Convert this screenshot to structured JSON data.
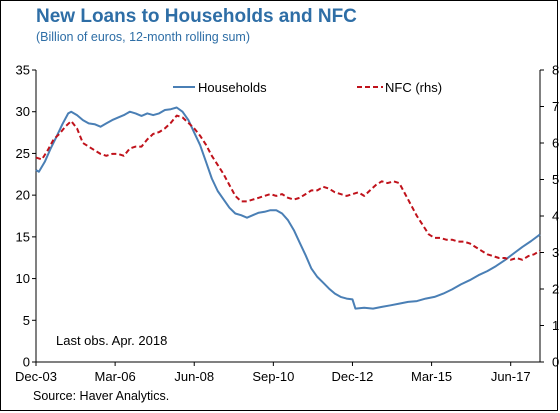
{
  "chart_data": {
    "type": "line",
    "title": "New Loans to Households and NFC",
    "subtitle": "(Billion of euros, 12-month rolling sum)",
    "source": "Source: Haver Analytics.",
    "annotation": "Last obs. Apr. 2018",
    "x_ticks": [
      "Dec-03",
      "Mar-06",
      "Jun-08",
      "Sep-10",
      "Dec-12",
      "Mar-15",
      "Jun-17"
    ],
    "x_range": [
      "2003-12",
      "2018-04"
    ],
    "y_left": {
      "min": 0,
      "max": 35,
      "ticks": [
        "0",
        "5",
        "10",
        "15",
        "20",
        "25",
        "30",
        "35"
      ]
    },
    "y_right": {
      "min": 0,
      "max": 8,
      "ticks": [
        "0",
        "1",
        "2",
        "3",
        "4",
        "5",
        "6",
        "7",
        "8"
      ]
    },
    "legend_placement": "top",
    "series": [
      {
        "name": "Households",
        "axis": "left",
        "color": "#4a7fb5",
        "style": "solid",
        "points": [
          [
            "2003-12",
            23.0
          ],
          [
            "2004-01",
            22.8
          ],
          [
            "2004-03",
            24.0
          ],
          [
            "2004-05",
            25.6
          ],
          [
            "2004-07",
            27.0
          ],
          [
            "2004-09",
            28.5
          ],
          [
            "2004-11",
            29.8
          ],
          [
            "2004-12",
            30.0
          ],
          [
            "2005-02",
            29.6
          ],
          [
            "2005-04",
            29.0
          ],
          [
            "2005-06",
            28.6
          ],
          [
            "2005-08",
            28.5
          ],
          [
            "2005-10",
            28.2
          ],
          [
            "2005-12",
            28.6
          ],
          [
            "2006-02",
            29.0
          ],
          [
            "2006-04",
            29.3
          ],
          [
            "2006-06",
            29.6
          ],
          [
            "2006-08",
            30.0
          ],
          [
            "2006-10",
            29.8
          ],
          [
            "2006-12",
            29.5
          ],
          [
            "2007-02",
            29.8
          ],
          [
            "2007-04",
            29.6
          ],
          [
            "2007-06",
            29.8
          ],
          [
            "2007-08",
            30.2
          ],
          [
            "2007-10",
            30.3
          ],
          [
            "2007-12",
            30.5
          ],
          [
            "2008-02",
            30.0
          ],
          [
            "2008-04",
            29.0
          ],
          [
            "2008-06",
            27.5
          ],
          [
            "2008-08",
            26.0
          ],
          [
            "2008-10",
            24.0
          ],
          [
            "2008-12",
            22.0
          ],
          [
            "2009-02",
            20.5
          ],
          [
            "2009-04",
            19.5
          ],
          [
            "2009-06",
            18.5
          ],
          [
            "2009-08",
            17.8
          ],
          [
            "2009-10",
            17.6
          ],
          [
            "2009-12",
            17.3
          ],
          [
            "2010-02",
            17.6
          ],
          [
            "2010-04",
            17.9
          ],
          [
            "2010-06",
            18.0
          ],
          [
            "2010-08",
            18.2
          ],
          [
            "2010-10",
            18.2
          ],
          [
            "2010-12",
            17.8
          ],
          [
            "2011-02",
            17.0
          ],
          [
            "2011-04",
            15.8
          ],
          [
            "2011-06",
            14.3
          ],
          [
            "2011-08",
            12.8
          ],
          [
            "2011-10",
            11.2
          ],
          [
            "2011-12",
            10.2
          ],
          [
            "2012-02",
            9.5
          ],
          [
            "2012-04",
            8.8
          ],
          [
            "2012-06",
            8.2
          ],
          [
            "2012-08",
            7.8
          ],
          [
            "2012-10",
            7.6
          ],
          [
            "2012-12",
            7.5
          ],
          [
            "2013-01",
            6.4
          ],
          [
            "2013-04",
            6.5
          ],
          [
            "2013-07",
            6.4
          ],
          [
            "2013-10",
            6.6
          ],
          [
            "2014-01",
            6.8
          ],
          [
            "2014-04",
            7.0
          ],
          [
            "2014-07",
            7.2
          ],
          [
            "2014-10",
            7.3
          ],
          [
            "2015-01",
            7.6
          ],
          [
            "2015-04",
            7.8
          ],
          [
            "2015-07",
            8.2
          ],
          [
            "2015-10",
            8.7
          ],
          [
            "2016-01",
            9.3
          ],
          [
            "2016-04",
            9.8
          ],
          [
            "2016-07",
            10.4
          ],
          [
            "2016-10",
            10.9
          ],
          [
            "2017-01",
            11.5
          ],
          [
            "2017-04",
            12.2
          ],
          [
            "2017-07",
            13.0
          ],
          [
            "2017-10",
            13.8
          ],
          [
            "2018-01",
            14.5
          ],
          [
            "2018-04",
            15.3
          ]
        ]
      },
      {
        "name": "NFC (rhs)",
        "axis": "right",
        "color": "#c0121b",
        "style": "dashed",
        "points": [
          [
            "2003-12",
            5.6
          ],
          [
            "2004-02",
            5.55
          ],
          [
            "2004-04",
            5.8
          ],
          [
            "2004-06",
            6.1
          ],
          [
            "2004-08",
            6.25
          ],
          [
            "2004-10",
            6.45
          ],
          [
            "2004-12",
            6.6
          ],
          [
            "2005-02",
            6.4
          ],
          [
            "2005-04",
            6.0
          ],
          [
            "2005-06",
            5.9
          ],
          [
            "2005-08",
            5.8
          ],
          [
            "2005-10",
            5.7
          ],
          [
            "2005-12",
            5.65
          ],
          [
            "2006-02",
            5.7
          ],
          [
            "2006-04",
            5.7
          ],
          [
            "2006-06",
            5.65
          ],
          [
            "2006-08",
            5.85
          ],
          [
            "2006-10",
            5.9
          ],
          [
            "2006-12",
            5.9
          ],
          [
            "2007-02",
            6.1
          ],
          [
            "2007-04",
            6.25
          ],
          [
            "2007-06",
            6.3
          ],
          [
            "2007-08",
            6.4
          ],
          [
            "2007-10",
            6.55
          ],
          [
            "2007-12",
            6.75
          ],
          [
            "2008-02",
            6.7
          ],
          [
            "2008-04",
            6.55
          ],
          [
            "2008-06",
            6.4
          ],
          [
            "2008-08",
            6.2
          ],
          [
            "2008-10",
            5.95
          ],
          [
            "2008-12",
            5.65
          ],
          [
            "2009-02",
            5.4
          ],
          [
            "2009-04",
            5.15
          ],
          [
            "2009-06",
            4.85
          ],
          [
            "2009-08",
            4.55
          ],
          [
            "2009-10",
            4.4
          ],
          [
            "2009-12",
            4.4
          ],
          [
            "2010-02",
            4.45
          ],
          [
            "2010-04",
            4.5
          ],
          [
            "2010-06",
            4.55
          ],
          [
            "2010-08",
            4.6
          ],
          [
            "2010-10",
            4.55
          ],
          [
            "2010-12",
            4.6
          ],
          [
            "2011-02",
            4.5
          ],
          [
            "2011-04",
            4.45
          ],
          [
            "2011-06",
            4.5
          ],
          [
            "2011-08",
            4.6
          ],
          [
            "2011-10",
            4.7
          ],
          [
            "2011-12",
            4.7
          ],
          [
            "2012-02",
            4.8
          ],
          [
            "2012-04",
            4.75
          ],
          [
            "2012-06",
            4.65
          ],
          [
            "2012-08",
            4.6
          ],
          [
            "2012-10",
            4.55
          ],
          [
            "2012-12",
            4.6
          ],
          [
            "2013-02",
            4.65
          ],
          [
            "2013-04",
            4.55
          ],
          [
            "2013-06",
            4.7
          ],
          [
            "2013-08",
            4.85
          ],
          [
            "2013-10",
            4.95
          ],
          [
            "2013-12",
            4.9
          ],
          [
            "2014-02",
            4.95
          ],
          [
            "2014-04",
            4.9
          ],
          [
            "2014-06",
            4.6
          ],
          [
            "2014-08",
            4.3
          ],
          [
            "2014-10",
            4.0
          ],
          [
            "2014-12",
            3.75
          ],
          [
            "2015-02",
            3.5
          ],
          [
            "2015-04",
            3.4
          ],
          [
            "2015-06",
            3.4
          ],
          [
            "2015-08",
            3.35
          ],
          [
            "2015-10",
            3.35
          ],
          [
            "2015-12",
            3.3
          ],
          [
            "2016-02",
            3.3
          ],
          [
            "2016-04",
            3.25
          ],
          [
            "2016-06",
            3.15
          ],
          [
            "2016-08",
            3.05
          ],
          [
            "2016-10",
            2.95
          ],
          [
            "2016-12",
            2.9
          ],
          [
            "2017-02",
            2.85
          ],
          [
            "2017-04",
            2.85
          ],
          [
            "2017-06",
            2.8
          ],
          [
            "2017-08",
            2.85
          ],
          [
            "2017-10",
            2.8
          ],
          [
            "2017-12",
            2.9
          ],
          [
            "2018-02",
            2.95
          ],
          [
            "2018-04",
            3.05
          ]
        ]
      }
    ]
  }
}
